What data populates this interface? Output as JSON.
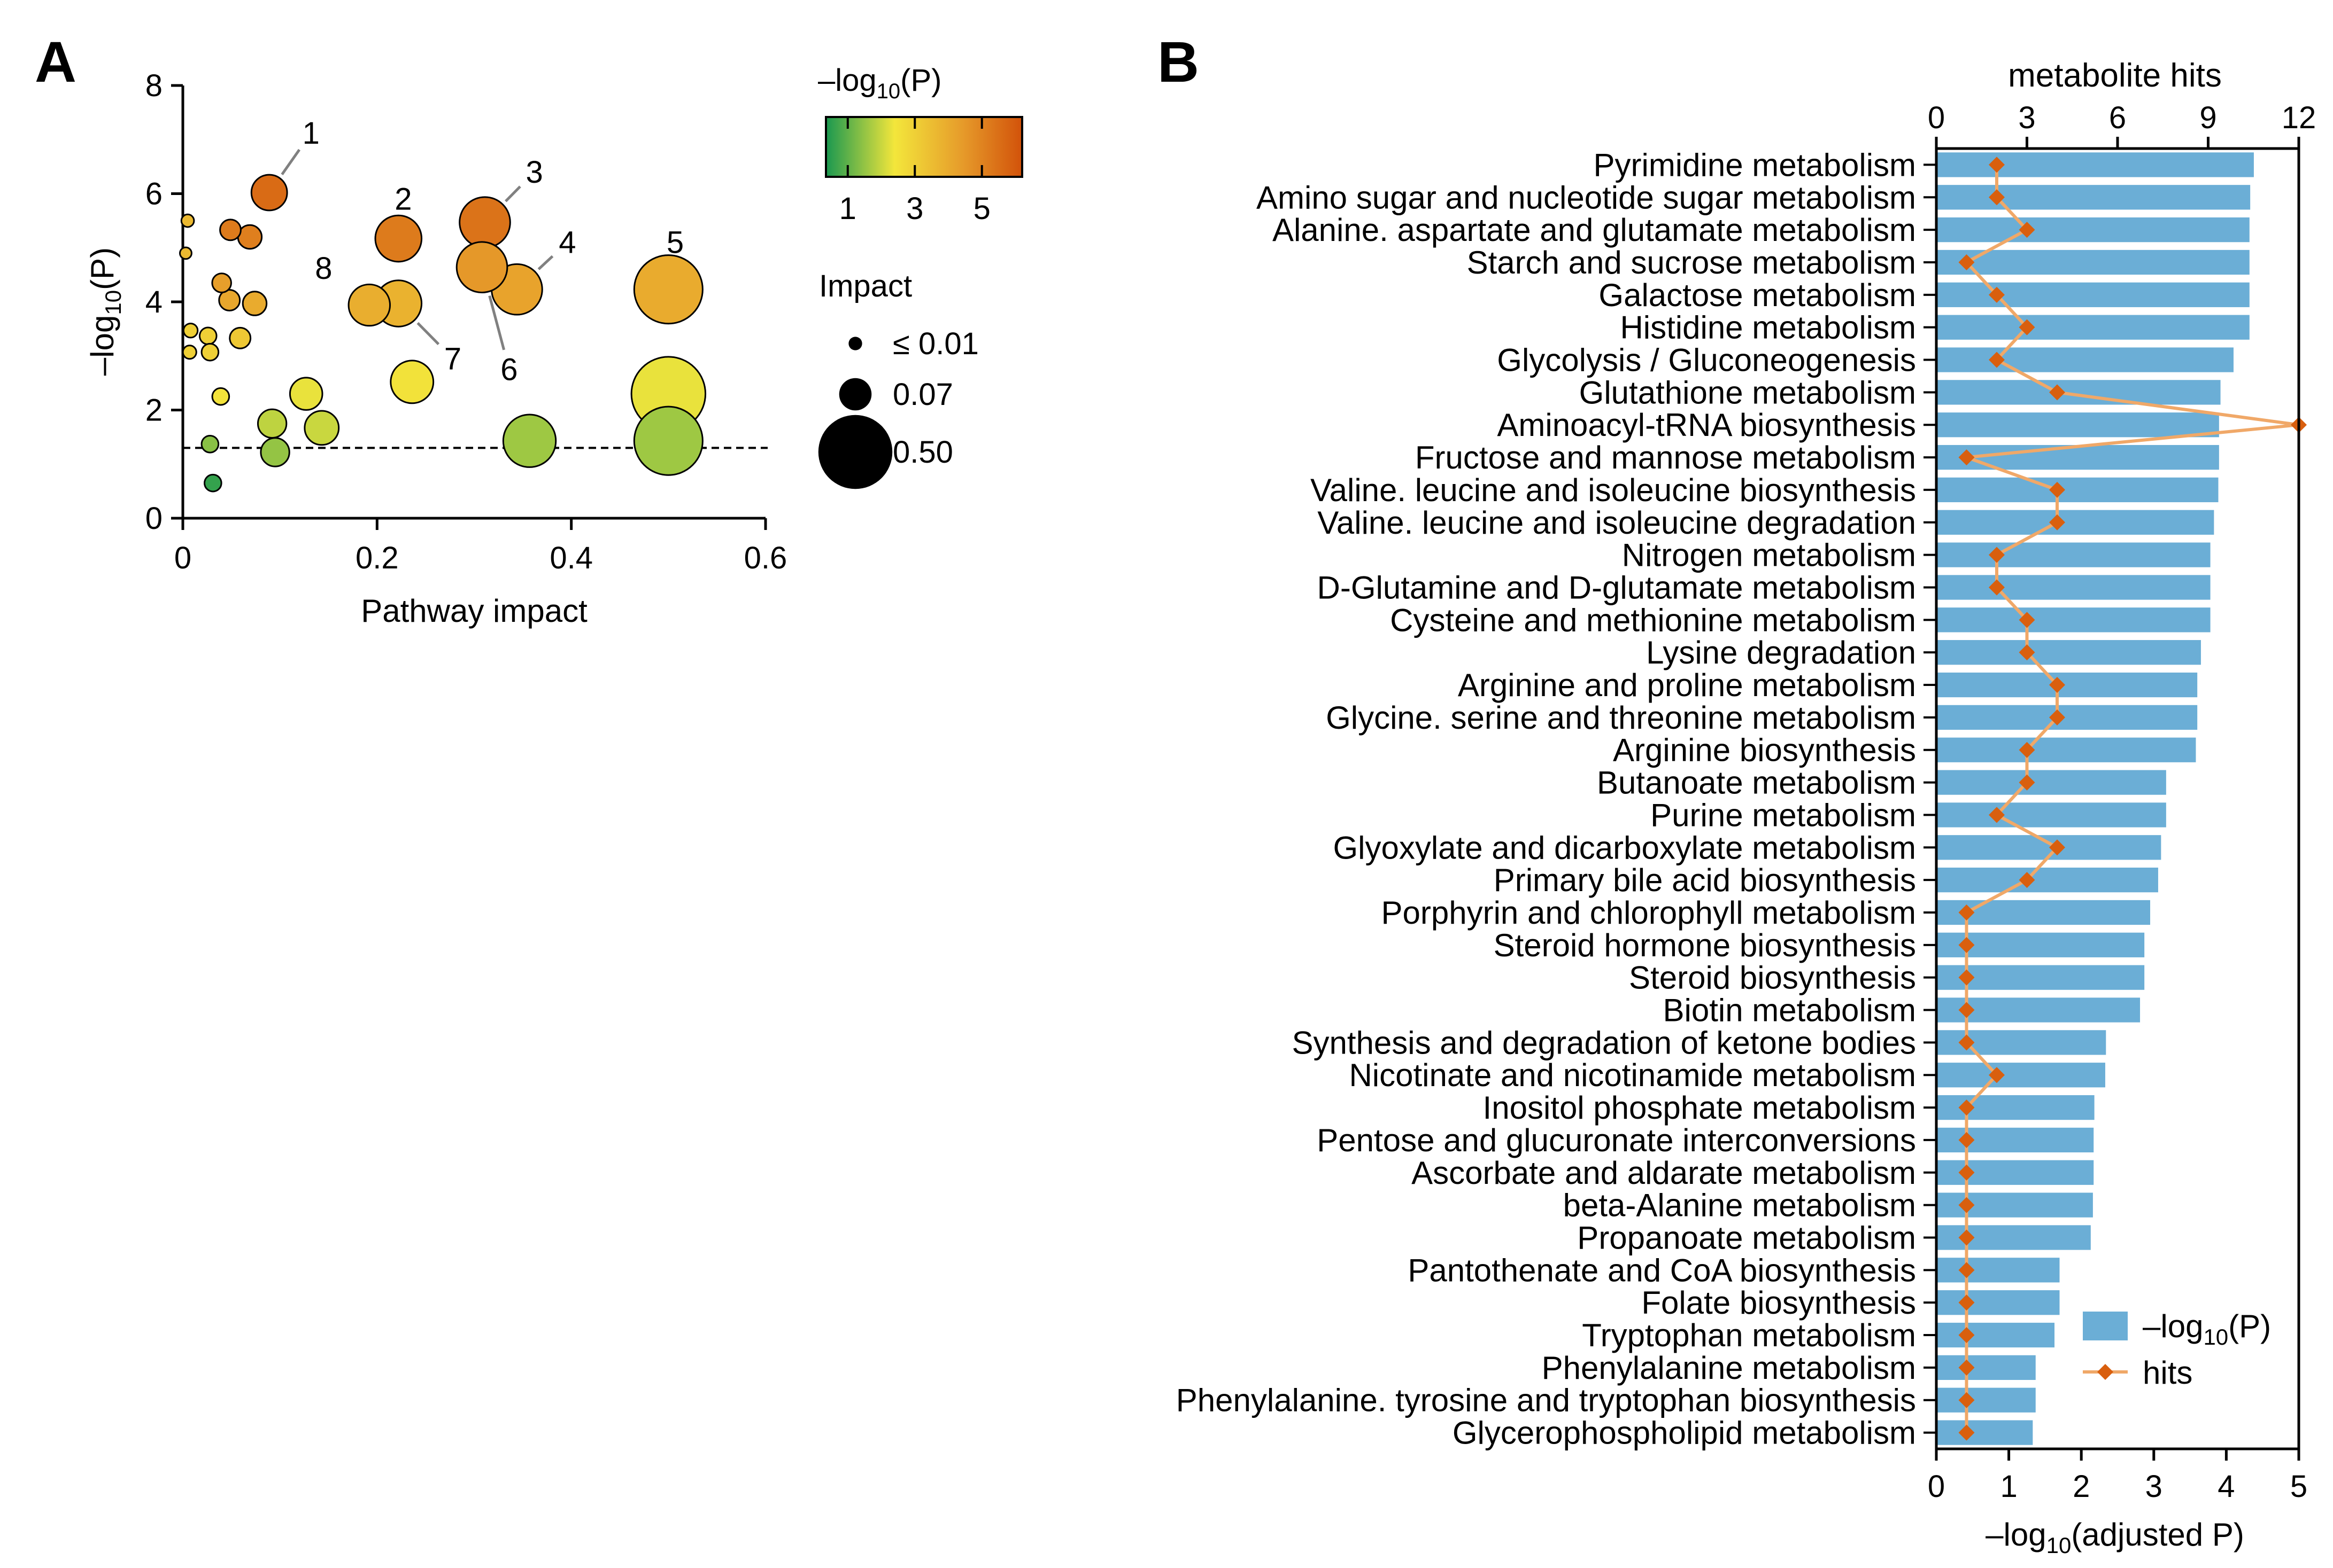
{
  "panels": {
    "a_label": "A",
    "b_label": "B"
  },
  "colors": {
    "bar": "#6baed6",
    "hits_line": "#f0a868",
    "hits_marker": "#d95f0e",
    "axis": "#000000",
    "gradient": [
      "#1a9850",
      "#f3e63b",
      "#e69a2a",
      "#d2520a"
    ]
  },
  "chart_data": [
    {
      "id": "A",
      "type": "scatter",
      "title": "",
      "xlabel": "Pathway impact",
      "ylabel_prefix": "–log",
      "ylabel_sub": "10",
      "ylabel_suffix": "(P)",
      "xlim": [
        0,
        0.6
      ],
      "ylim": [
        0,
        8
      ],
      "x_ticks": [
        0,
        0.2,
        0.4,
        0.6
      ],
      "x_tick_labels": [
        "0",
        "0.2",
        "0.4",
        "0.6"
      ],
      "y_ticks": [
        0,
        2,
        4,
        6,
        8
      ],
      "y_tick_labels": [
        "0",
        "2",
        "4",
        "6",
        "8"
      ],
      "threshold_y": 1.3,
      "points": [
        {
          "x": 0.089,
          "y": 6.02,
          "impact": 0.09,
          "logp": 5.6
        },
        {
          "x": 0.222,
          "y": 5.17,
          "impact": 0.17,
          "logp": 5.2
        },
        {
          "x": 0.311,
          "y": 5.47,
          "impact": 0.21,
          "logp": 5.4
        },
        {
          "x": 0.344,
          "y": 4.23,
          "impact": 0.21,
          "logp": 4.2
        },
        {
          "x": 0.5,
          "y": 4.23,
          "impact": 0.42,
          "logp": 4.0
        },
        {
          "x": 0.308,
          "y": 4.64,
          "impact": 0.21,
          "logp": 4.5
        },
        {
          "x": 0.222,
          "y": 3.97,
          "impact": 0.17,
          "logp": 3.8
        },
        {
          "x": 0.192,
          "y": 3.94,
          "impact": 0.13,
          "logp": 3.9
        },
        {
          "x": 0.049,
          "y": 5.33,
          "impact": 0.02,
          "logp": 5.2
        },
        {
          "x": 0.069,
          "y": 5.2,
          "impact": 0.03,
          "logp": 5.1
        },
        {
          "x": 0.005,
          "y": 5.5,
          "impact": 0.003,
          "logp": 3.6
        },
        {
          "x": 0.003,
          "y": 4.9,
          "impact": 0.002,
          "logp": 3.6
        },
        {
          "x": 0.04,
          "y": 4.35,
          "impact": 0.015,
          "logp": 4.3
        },
        {
          "x": 0.048,
          "y": 4.03,
          "impact": 0.02,
          "logp": 4.1
        },
        {
          "x": 0.074,
          "y": 3.97,
          "impact": 0.03,
          "logp": 4.0
        },
        {
          "x": 0.059,
          "y": 3.33,
          "impact": 0.02,
          "logp": 3.2
        },
        {
          "x": 0.026,
          "y": 3.37,
          "impact": 0.01,
          "logp": 3.0
        },
        {
          "x": 0.008,
          "y": 3.47,
          "impact": 0.005,
          "logp": 3.0
        },
        {
          "x": 0.028,
          "y": 3.07,
          "impact": 0.01,
          "logp": 3.0
        },
        {
          "x": 0.007,
          "y": 3.07,
          "impact": 0.004,
          "logp": 3.0
        },
        {
          "x": 0.039,
          "y": 2.25,
          "impact": 0.01,
          "logp": 2.5
        },
        {
          "x": 0.236,
          "y": 2.52,
          "impact": 0.14,
          "logp": 2.5
        },
        {
          "x": 0.127,
          "y": 2.3,
          "impact": 0.07,
          "logp": 2.3
        },
        {
          "x": 0.5,
          "y": 2.3,
          "impact": 0.5,
          "logp": 2.3
        },
        {
          "x": 0.092,
          "y": 1.75,
          "impact": 0.05,
          "logp": 1.9
        },
        {
          "x": 0.143,
          "y": 1.67,
          "impact": 0.08,
          "logp": 2.0
        },
        {
          "x": 0.357,
          "y": 1.43,
          "impact": 0.23,
          "logp": 1.6
        },
        {
          "x": 0.5,
          "y": 1.43,
          "impact": 0.42,
          "logp": 1.6
        },
        {
          "x": 0.095,
          "y": 1.22,
          "impact": 0.05,
          "logp": 1.5
        },
        {
          "x": 0.028,
          "y": 1.37,
          "impact": 0.01,
          "logp": 1.4
        },
        {
          "x": 0.031,
          "y": 0.65,
          "impact": 0.01,
          "logp": 0.6
        }
      ],
      "annotations": [
        {
          "text": "1",
          "x": 0.089,
          "y": 6.02,
          "tx": 0.132,
          "ty": 7.12
        },
        {
          "text": "2",
          "x": 0.222,
          "y": 5.17,
          "tx": 0.227,
          "ty": 5.9
        },
        {
          "text": "3",
          "x": 0.311,
          "y": 5.47,
          "tx": 0.362,
          "ty": 6.4
        },
        {
          "text": "4",
          "x": 0.344,
          "y": 4.23,
          "tx": 0.396,
          "ty": 5.1
        },
        {
          "text": "5",
          "x": 0.5,
          "y": 4.23,
          "tx": 0.507,
          "ty": 5.1
        },
        {
          "text": "6",
          "x": 0.308,
          "y": 4.64,
          "tx": 0.336,
          "ty": 2.75
        },
        {
          "text": "7",
          "x": 0.222,
          "y": 3.97,
          "tx": 0.278,
          "ty": 2.95
        },
        {
          "text": "8",
          "x": 0.192,
          "y": 3.94,
          "tx": 0.145,
          "ty": 4.62
        }
      ],
      "colorbar": {
        "title_prefix": "–log",
        "title_sub": "10",
        "title_suffix": "(P)",
        "min": 0.35,
        "max": 6.2,
        "ticks": [
          1,
          3,
          5
        ],
        "tick_labels": [
          "1",
          "3",
          "5"
        ]
      },
      "size_legend": {
        "title": "Impact",
        "items": [
          {
            "value": 0.01,
            "label": "≤  0.01"
          },
          {
            "value": 0.07,
            "label": "0.07"
          },
          {
            "value": 0.5,
            "label": "0.50"
          }
        ]
      }
    },
    {
      "id": "B",
      "type": "bar",
      "orientation": "horizontal",
      "title": "",
      "xlabel_prefix": "–log",
      "xlabel_sub": "10",
      "xlabel_suffix": "(adjusted P)",
      "xlim": [
        0,
        5
      ],
      "x_ticks": [
        0,
        1,
        2,
        3,
        4,
        5
      ],
      "x_tick_labels": [
        "0",
        "1",
        "2",
        "3",
        "4",
        "5"
      ],
      "top_axis_label": "metabolite hits",
      "top_lim": [
        0,
        12
      ],
      "top_ticks": [
        0,
        3,
        6,
        9,
        12
      ],
      "top_tick_labels": [
        "0",
        "3",
        "6",
        "9",
        "12"
      ],
      "categories": [
        "Pyrimidine metabolism",
        "Amino sugar and nucleotide sugar metabolism",
        "Alanine. aspartate and glutamate metabolism",
        "Starch and sucrose metabolism",
        "Galactose metabolism",
        "Histidine metabolism",
        "Glycolysis / Gluconeogenesis",
        "Glutathione metabolism",
        "Aminoacyl-tRNA biosynthesis",
        "Fructose and mannose metabolism",
        "Valine. leucine and isoleucine biosynthesis",
        "Valine. leucine and isoleucine degradation",
        "Nitrogen metabolism",
        "D-Glutamine and D-glutamate metabolism",
        "Cysteine and methionine metabolism",
        "Lysine degradation",
        "Arginine and proline metabolism",
        "Glycine. serine and threonine metabolism",
        "Arginine biosynthesis",
        "Butanoate metabolism",
        "Purine metabolism",
        "Glyoxylate and dicarboxylate metabolism",
        "Primary bile acid biosynthesis",
        "Porphyrin and chlorophyll metabolism",
        "Steroid hormone biosynthesis",
        "Steroid biosynthesis",
        "Biotin metabolism",
        "Synthesis and degradation of ketone bodies",
        "Nicotinate and nicotinamide metabolism",
        "Inositol phosphate metabolism",
        "Pentose and glucuronate interconversions",
        "Ascorbate and aldarate metabolism",
        "beta-Alanine metabolism",
        "Propanoate metabolism",
        "Pantothenate and CoA biosynthesis",
        "Folate biosynthesis",
        "Tryptophan metabolism",
        "Phenylalanine metabolism",
        "Phenylalanine. tyrosine and tryptophan biosynthesis",
        "Glycerophospholipid metabolism"
      ],
      "series": [
        {
          "name": "–log10(P)",
          "legend_prefix": "–log",
          "legend_sub": "10",
          "legend_suffix": "(P)",
          "values": [
            4.38,
            4.33,
            4.32,
            4.32,
            4.32,
            4.32,
            4.1,
            3.92,
            3.9,
            3.9,
            3.89,
            3.83,
            3.78,
            3.78,
            3.78,
            3.65,
            3.6,
            3.6,
            3.58,
            3.17,
            3.17,
            3.1,
            3.06,
            2.95,
            2.87,
            2.87,
            2.81,
            2.34,
            2.33,
            2.18,
            2.17,
            2.17,
            2.16,
            2.13,
            1.7,
            1.7,
            1.63,
            1.37,
            1.37,
            1.33
          ]
        },
        {
          "name": "hits",
          "legend": "hits",
          "values": [
            2,
            2,
            3,
            1,
            2,
            3,
            2,
            4,
            12,
            1,
            4,
            4,
            2,
            2,
            3,
            3,
            4,
            4,
            3,
            3,
            2,
            4,
            3,
            1,
            1,
            1,
            1,
            1,
            2,
            1,
            1,
            1,
            1,
            1,
            1,
            1,
            1,
            1,
            1,
            1
          ]
        }
      ]
    }
  ]
}
